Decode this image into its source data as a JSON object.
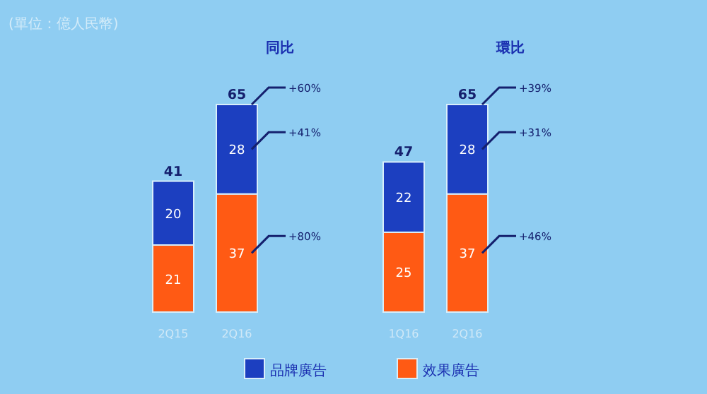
{
  "chart_data": [
    {
      "type": "bar",
      "stacked": true,
      "title": "同比",
      "subtitle": "(單位：億人民幣)",
      "categories": [
        "2Q15",
        "2Q16"
      ],
      "series": [
        {
          "name": "效果廣告",
          "color": "#ff5a14",
          "values": [
            21,
            37
          ]
        },
        {
          "name": "品牌廣告",
          "color": "#1c3fc0",
          "values": [
            20,
            28
          ]
        }
      ],
      "data_labels": true,
      "totals": [
        "41",
        "65"
      ],
      "legend": "bottom",
      "annotations": [
        "+60%",
        "+41%",
        "+80%"
      ]
    },
    {
      "type": "bar",
      "stacked": true,
      "title": "環比",
      "categories": [
        "1Q16",
        "2Q16"
      ],
      "series": [
        {
          "color": "#ff5a14",
          "values": [
            25,
            37
          ]
        },
        {
          "color": "#1c3fc0",
          "values": [
            22,
            28
          ]
        }
      ],
      "data_labels": true,
      "totals": [
        "47",
        "65"
      ],
      "annotations": [
        "+39%",
        "+31%",
        "+46%"
      ]
    }
  ]
}
